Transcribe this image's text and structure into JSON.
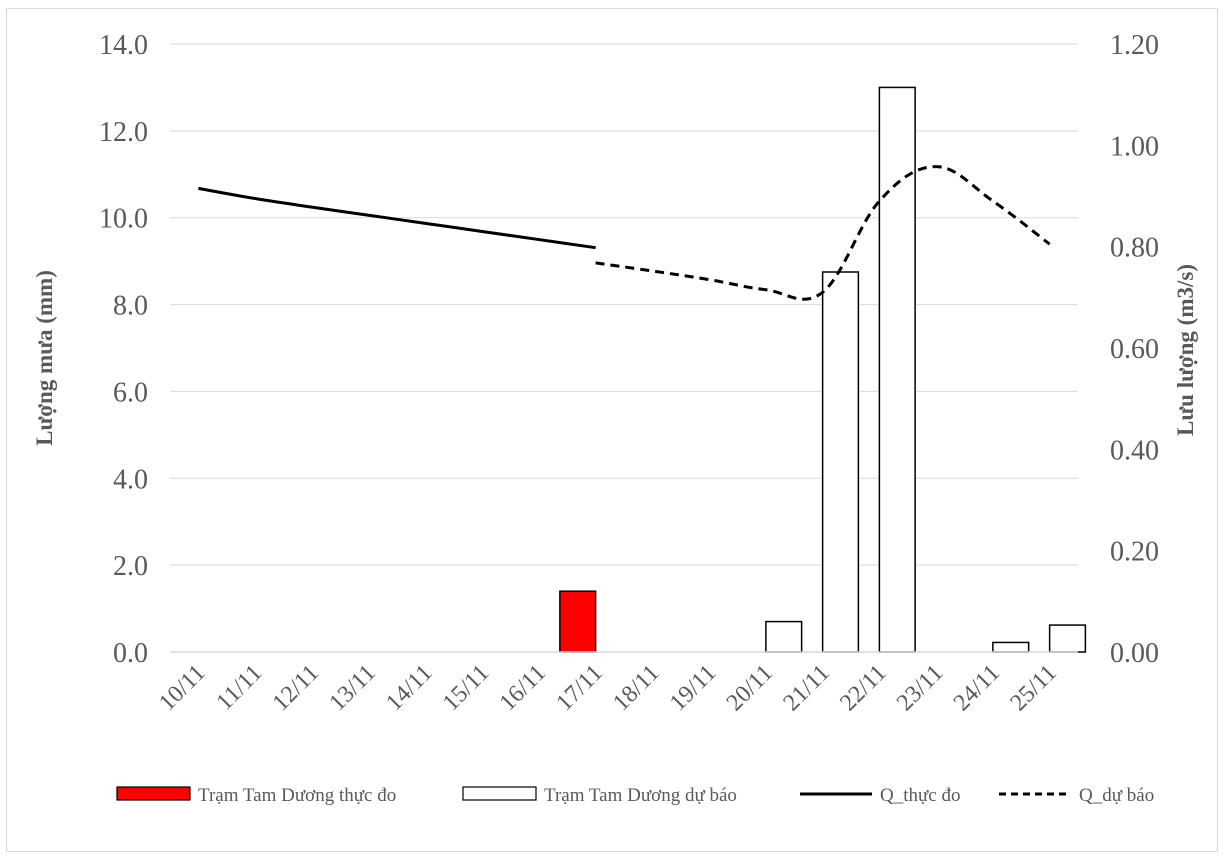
{
  "chart_data": {
    "type": "bar",
    "categories": [
      "10/11",
      "11/11",
      "12/11",
      "13/11",
      "14/11",
      "15/11",
      "16/11",
      "17/11",
      "18/11",
      "19/11",
      "20/11",
      "21/11",
      "22/11",
      "23/11",
      "24/11",
      "25/11"
    ],
    "y_left": {
      "label": "Lượng mưa (mm)",
      "lim": [
        0,
        14
      ],
      "ticks": [
        "0.0",
        "2.0",
        "4.0",
        "6.0",
        "8.0",
        "10.0",
        "12.0",
        "14.0"
      ],
      "tick_values": [
        0,
        2,
        4,
        6,
        8,
        10,
        12,
        14
      ]
    },
    "y_right": {
      "label": "Lưu lượng (m3/s)",
      "lim": [
        0,
        1.2
      ],
      "ticks": [
        "0.00",
        "0.20",
        "0.40",
        "0.60",
        "0.80",
        "1.00",
        "1.20"
      ],
      "tick_values": [
        0,
        0.2,
        0.4,
        0.6,
        0.8,
        1.0,
        1.2
      ]
    },
    "series": [
      {
        "name": "Trạm Tam Dương thực đo",
        "kind": "bar",
        "axis": "left",
        "color": "#ff0000",
        "values": [
          0,
          0,
          0,
          0,
          0,
          0,
          0,
          1.4,
          0,
          0,
          0,
          0,
          0,
          0,
          0,
          0
        ]
      },
      {
        "name": "Trạm Tam Dương dự báo",
        "kind": "bar",
        "axis": "left",
        "color": "#ffffff",
        "values": [
          0,
          0,
          0,
          0,
          0,
          0,
          0,
          0,
          0,
          0,
          0.7,
          8.75,
          13.0,
          0,
          0.22,
          0.62
        ]
      },
      {
        "name": "Q_thực đo",
        "kind": "line",
        "axis": "right",
        "color": "#000000",
        "dash": "solid",
        "values": [
          0.915,
          0.895,
          0.878,
          0.862,
          0.846,
          0.83,
          0.814,
          0.798,
          null,
          null,
          null,
          null,
          null,
          null,
          null,
          null
        ]
      },
      {
        "name": "Q_dự báo",
        "kind": "line",
        "axis": "right",
        "color": "#000000",
        "dash": "dashed",
        "values": [
          null,
          null,
          null,
          null,
          null,
          null,
          null,
          0.768,
          0.752,
          0.735,
          0.715,
          0.71,
          0.89,
          0.958,
          0.89,
          0.805
        ]
      }
    ],
    "grid": true,
    "legend_position": "bottom"
  }
}
